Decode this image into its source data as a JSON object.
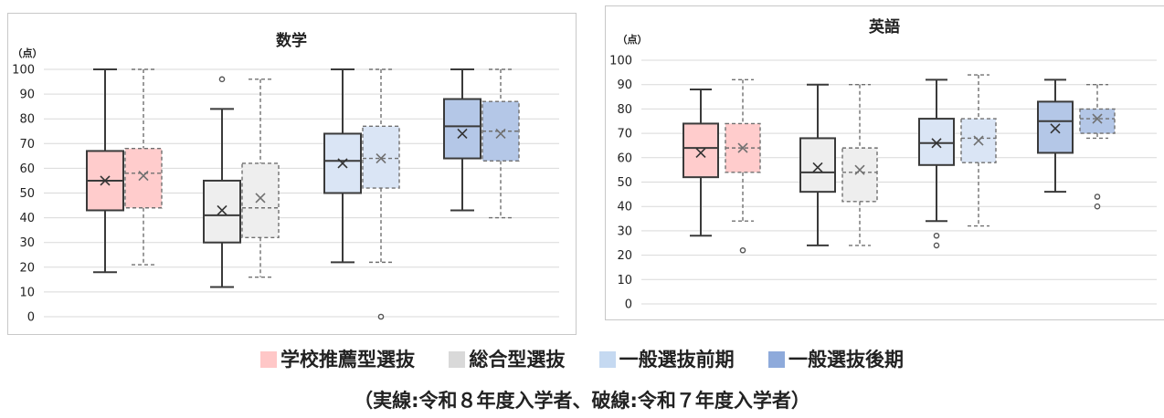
{
  "chart_data": [
    {
      "type": "box",
      "title": "数学",
      "ylabel": "（点）",
      "ylim": [
        0,
        100
      ],
      "ytick_step": 10,
      "grid": true,
      "groups": [
        "学校推薦型選抜",
        "総合型選抜",
        "一般選抜前期",
        "一般選抜後期"
      ],
      "series": [
        {
          "line_style": "solid",
          "boxes": [
            {
              "min": 18,
              "q1": 43,
              "median": 55,
              "q3": 67,
              "max": 100,
              "mean": 55,
              "outliers": []
            },
            {
              "min": 12,
              "q1": 30,
              "median": 41,
              "q3": 55,
              "max": 84,
              "mean": 43,
              "outliers": [
                96
              ]
            },
            {
              "min": 22,
              "q1": 50,
              "median": 63,
              "q3": 74,
              "max": 100,
              "mean": 62,
              "outliers": []
            },
            {
              "min": 43,
              "q1": 64,
              "median": 77,
              "q3": 88,
              "max": 100,
              "mean": 74,
              "outliers": []
            }
          ]
        },
        {
          "line_style": "dashed",
          "boxes": [
            {
              "min": 21,
              "q1": 44,
              "median": 58,
              "q3": 68,
              "max": 100,
              "mean": 57,
              "outliers": []
            },
            {
              "min": 16,
              "q1": 32,
              "median": 44,
              "q3": 62,
              "max": 96,
              "mean": 48,
              "outliers": []
            },
            {
              "min": 22,
              "q1": 52,
              "median": 64,
              "q3": 77,
              "max": 100,
              "mean": 64,
              "outliers": [
                0
              ]
            },
            {
              "min": 40,
              "q1": 63,
              "median": 75,
              "q3": 87,
              "max": 100,
              "mean": 74,
              "outliers": []
            }
          ]
        }
      ]
    },
    {
      "type": "box",
      "title": "英語",
      "ylabel": "（点）",
      "ylim": [
        0,
        100
      ],
      "ytick_step": 10,
      "grid": true,
      "groups": [
        "学校推薦型選抜",
        "総合型選抜",
        "一般選抜前期",
        "一般選抜後期"
      ],
      "series": [
        {
          "line_style": "solid",
          "boxes": [
            {
              "min": 28,
              "q1": 52,
              "median": 64,
              "q3": 74,
              "max": 88,
              "mean": 62,
              "outliers": []
            },
            {
              "min": 24,
              "q1": 46,
              "median": 54,
              "q3": 68,
              "max": 90,
              "mean": 56,
              "outliers": []
            },
            {
              "min": 34,
              "q1": 57,
              "median": 66,
              "q3": 76,
              "max": 92,
              "mean": 66,
              "outliers": [
                28,
                24
              ]
            },
            {
              "min": 46,
              "q1": 62,
              "median": 75,
              "q3": 83,
              "max": 92,
              "mean": 72,
              "outliers": []
            }
          ]
        },
        {
          "line_style": "dashed",
          "boxes": [
            {
              "min": 34,
              "q1": 54,
              "median": 64,
              "q3": 74,
              "max": 92,
              "mean": 64,
              "outliers": [
                22
              ]
            },
            {
              "min": 24,
              "q1": 42,
              "median": 54,
              "q3": 64,
              "max": 90,
              "mean": 55,
              "outliers": []
            },
            {
              "min": 32,
              "q1": 58,
              "median": 68,
              "q3": 76,
              "max": 94,
              "mean": 67,
              "outliers": []
            },
            {
              "min": 68,
              "q1": 70,
              "median": 76,
              "q3": 80,
              "max": 90,
              "mean": 76,
              "outliers": [
                44,
                40
              ]
            }
          ]
        }
      ]
    }
  ],
  "legend": [
    {
      "label": "学校推薦型選抜",
      "color": "#ffc7c7"
    },
    {
      "label": "総合型選抜",
      "color": "#d9d9d9"
    },
    {
      "label": "一般選抜前期",
      "color": "#c5d9f1"
    },
    {
      "label": "一般選抜後期",
      "color": "#8eaadb"
    }
  ],
  "footnote": "（実線:令和８年度入学者、破線:令和７年度入学者）",
  "colors": {
    "box_fills": [
      "#ffcccc",
      "#eeeeee",
      "#dae5f5",
      "#b4c7e7"
    ],
    "stroke": "#3a3a3a",
    "dashed_stroke": "#707070",
    "grid": "#d9d9d9",
    "frame": "#c8c8c8"
  }
}
